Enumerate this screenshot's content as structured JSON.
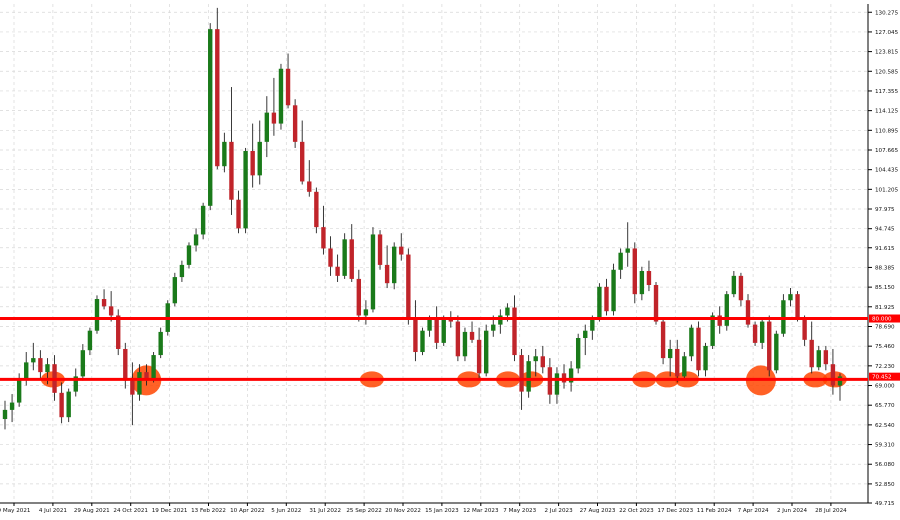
{
  "chart_data": {
    "type": "candlestick",
    "title": "",
    "xlabel": "",
    "ylabel": "",
    "grid": true,
    "ylim": [
      49.715,
      131.63
    ],
    "price_ticks": [
      "130.275",
      "127.045",
      "123.815",
      "120.585",
      "117.355",
      "114.125",
      "110.895",
      "107.665",
      "104.435",
      "101.205",
      "97.975",
      "94.745",
      "91.615",
      "88.385",
      "85.150",
      "81.925",
      "78.690",
      "75.460",
      "72.230",
      "69.000",
      "65.770",
      "62.540",
      "59.310",
      "56.080",
      "52.850",
      "49.715"
    ],
    "date_ticks": [
      "9 May 2021",
      "4 Jul 2021",
      "29 Aug 2021",
      "24 Oct 2021",
      "19 Dec 2021",
      "13 Feb 2022",
      "10 Apr 2022",
      "5 Jun 2022",
      "31 Jul 2022",
      "25 Sep 2022",
      "20 Nov 2022",
      "15 Jan 2023",
      "12 Mar 2023",
      "7 May 2023",
      "2 Jul 2023",
      "27 Aug 2023",
      "22 Oct 2023",
      "17 Dec 2023",
      "11 Feb 2024",
      "7 Apr 2024",
      "2 Jun 2024",
      "28 Jul 2024"
    ],
    "current_price": "70.452",
    "levels": [
      {
        "value": 80.0,
        "label": "80.000",
        "color": "#ff0000"
      },
      {
        "value": 70.0,
        "label": "",
        "color": "#ff0000"
      }
    ],
    "colors": {
      "up": "#1a7a1a",
      "down": "#c0242a",
      "wick": "#222222",
      "level": "#ff0000",
      "highlight": "#ff4500"
    },
    "highlight_date_indices": [
      1,
      3.4,
      9.2,
      11.7,
      12.7,
      13.3,
      16.2,
      16.8,
      17.3,
      19.2,
      20.6,
      21.1
    ],
    "candles": [
      [
        63.5,
        66.5,
        61.8,
        65.0
      ],
      [
        65.0,
        67.6,
        63.0,
        66.2
      ],
      [
        66.2,
        71.0,
        65.5,
        70.0
      ],
      [
        70.0,
        74.5,
        69.0,
        72.8
      ],
      [
        72.8,
        76.0,
        71.5,
        73.5
      ],
      [
        73.5,
        74.8,
        70.0,
        71.2
      ],
      [
        71.2,
        73.5,
        69.2,
        72.5
      ],
      [
        72.5,
        74.0,
        66.5,
        67.8
      ],
      [
        67.8,
        69.5,
        62.8,
        63.8
      ],
      [
        63.8,
        68.5,
        63.0,
        68.0
      ],
      [
        68.0,
        71.8,
        67.2,
        70.5
      ],
      [
        70.5,
        75.8,
        69.8,
        74.8
      ],
      [
        74.8,
        78.5,
        74.0,
        78.0
      ],
      [
        78.0,
        83.8,
        77.5,
        83.2
      ],
      [
        83.2,
        84.8,
        81.5,
        82.0
      ],
      [
        82.0,
        84.5,
        79.5,
        80.5
      ],
      [
        80.5,
        81.5,
        74.0,
        75.0
      ],
      [
        75.0,
        76.0,
        68.5,
        69.8
      ],
      [
        69.8,
        72.8,
        62.5,
        67.5
      ],
      [
        67.5,
        72.5,
        66.5,
        71.2
      ],
      [
        71.2,
        72.5,
        69.0,
        70.0
      ],
      [
        70.0,
        74.5,
        69.5,
        74.0
      ],
      [
        74.0,
        78.5,
        73.5,
        77.8
      ],
      [
        77.8,
        83.0,
        77.2,
        82.5
      ],
      [
        82.5,
        87.5,
        82.0,
        86.8
      ],
      [
        86.8,
        89.5,
        86.0,
        88.8
      ],
      [
        88.8,
        92.5,
        88.2,
        92.0
      ],
      [
        92.0,
        94.8,
        91.0,
        93.8
      ],
      [
        93.8,
        99.0,
        93.0,
        98.5
      ],
      [
        98.5,
        128.5,
        97.8,
        127.5
      ],
      [
        127.5,
        131.0,
        104.5,
        105.0
      ],
      [
        105.0,
        110.5,
        104.0,
        109.0
      ],
      [
        109.0,
        118.0,
        97.0,
        99.5
      ],
      [
        99.5,
        101.0,
        94.0,
        94.8
      ],
      [
        94.8,
        108.0,
        94.0,
        107.5
      ],
      [
        107.5,
        112.0,
        101.5,
        103.5
      ],
      [
        103.5,
        112.5,
        102.0,
        109.0
      ],
      [
        109.0,
        116.5,
        106.5,
        113.8
      ],
      [
        113.8,
        119.5,
        110.0,
        112.0
      ],
      [
        112.0,
        121.8,
        111.0,
        121.0
      ],
      [
        121.0,
        123.5,
        114.5,
        115.0
      ],
      [
        115.0,
        116.0,
        108.0,
        109.0
      ],
      [
        109.0,
        112.5,
        102.0,
        102.5
      ],
      [
        102.5,
        106.0,
        100.0,
        100.8
      ],
      [
        100.8,
        101.5,
        94.0,
        95.0
      ],
      [
        95.0,
        98.5,
        90.5,
        91.5
      ],
      [
        91.5,
        93.5,
        87.0,
        88.5
      ],
      [
        88.5,
        90.5,
        86.0,
        87.0
      ],
      [
        87.0,
        94.0,
        86.5,
        93.0
      ],
      [
        93.0,
        95.5,
        86.0,
        86.5
      ],
      [
        86.5,
        88.0,
        79.5,
        80.5
      ],
      [
        80.5,
        83.0,
        79.0,
        81.5
      ],
      [
        81.5,
        95.0,
        81.0,
        93.8
      ],
      [
        93.8,
        94.5,
        88.0,
        88.8
      ],
      [
        88.8,
        92.0,
        85.0,
        85.8
      ],
      [
        85.8,
        92.5,
        84.8,
        91.8
      ],
      [
        91.8,
        94.0,
        89.5,
        90.5
      ],
      [
        90.5,
        91.5,
        79.0,
        80.0
      ],
      [
        80.0,
        83.0,
        73.0,
        74.5
      ],
      [
        74.5,
        78.5,
        74.0,
        78.0
      ],
      [
        78.0,
        80.5,
        77.0,
        80.0
      ],
      [
        80.0,
        82.0,
        75.0,
        76.0
      ],
      [
        76.0,
        80.5,
        75.5,
        80.2
      ],
      [
        80.2,
        81.2,
        78.5,
        79.5
      ],
      [
        79.5,
        80.5,
        73.0,
        73.8
      ],
      [
        73.8,
        78.5,
        73.0,
        77.8
      ],
      [
        77.8,
        79.5,
        76.0,
        76.5
      ],
      [
        76.5,
        78.5,
        70.0,
        71.0
      ],
      [
        71.0,
        79.0,
        70.5,
        78.0
      ],
      [
        78.0,
        80.5,
        77.0,
        79.0
      ],
      [
        79.0,
        81.5,
        77.5,
        80.5
      ],
      [
        80.5,
        82.5,
        79.5,
        81.8
      ],
      [
        81.8,
        83.8,
        73.0,
        74.0
      ],
      [
        74.0,
        75.0,
        65.0,
        68.0
      ],
      [
        68.0,
        74.0,
        67.0,
        73.0
      ],
      [
        73.0,
        75.0,
        70.5,
        73.8
      ],
      [
        73.8,
        75.5,
        71.0,
        72.0
      ],
      [
        72.0,
        73.5,
        66.0,
        67.5
      ],
      [
        67.5,
        72.0,
        66.0,
        71.0
      ],
      [
        71.0,
        72.5,
        68.5,
        69.5
      ],
      [
        69.5,
        73.0,
        68.0,
        71.8
      ],
      [
        71.8,
        77.5,
        71.0,
        76.8
      ],
      [
        76.8,
        79.0,
        74.0,
        78.0
      ],
      [
        78.0,
        80.5,
        76.5,
        80.0
      ],
      [
        80.0,
        85.8,
        79.5,
        85.2
      ],
      [
        85.2,
        86.5,
        80.5,
        81.2
      ],
      [
        81.2,
        89.0,
        80.5,
        88.0
      ],
      [
        88.0,
        91.5,
        86.5,
        90.8
      ],
      [
        90.8,
        95.8,
        88.5,
        91.5
      ],
      [
        91.5,
        92.5,
        82.5,
        84.0
      ],
      [
        84.0,
        88.5,
        83.0,
        87.8
      ],
      [
        87.8,
        89.5,
        84.5,
        85.5
      ],
      [
        85.5,
        86.0,
        79.0,
        79.5
      ],
      [
        79.5,
        80.0,
        72.5,
        73.5
      ],
      [
        73.5,
        76.5,
        70.5,
        75.0
      ],
      [
        75.0,
        76.5,
        69.5,
        70.5
      ],
      [
        70.5,
        74.5,
        70.0,
        73.8
      ],
      [
        73.8,
        79.0,
        73.0,
        78.5
      ],
      [
        78.5,
        79.5,
        70.5,
        71.5
      ],
      [
        71.5,
        76.0,
        70.5,
        75.5
      ],
      [
        75.5,
        81.0,
        75.0,
        80.5
      ],
      [
        80.5,
        82.0,
        77.5,
        78.8
      ],
      [
        78.8,
        84.5,
        78.0,
        84.0
      ],
      [
        84.0,
        87.8,
        83.5,
        87.0
      ],
      [
        87.0,
        87.5,
        82.0,
        83.0
      ],
      [
        83.0,
        84.0,
        78.5,
        79.0
      ],
      [
        79.0,
        79.5,
        75.5,
        76.0
      ],
      [
        76.0,
        80.0,
        75.0,
        79.5
      ],
      [
        79.5,
        80.5,
        70.5,
        71.5
      ],
      [
        71.5,
        78.0,
        71.0,
        77.5
      ],
      [
        77.5,
        84.0,
        77.0,
        83.0
      ],
      [
        83.0,
        85.0,
        82.0,
        84.0
      ],
      [
        84.0,
        84.5,
        79.5,
        80.0
      ],
      [
        80.0,
        80.5,
        75.5,
        76.5
      ],
      [
        76.5,
        79.5,
        71.0,
        72.0
      ],
      [
        72.0,
        75.5,
        71.5,
        74.8
      ],
      [
        74.8,
        75.5,
        71.5,
        72.5
      ],
      [
        72.5,
        75.0,
        67.5,
        69.0
      ],
      [
        69.0,
        71.0,
        66.5,
        70.5
      ]
    ]
  }
}
